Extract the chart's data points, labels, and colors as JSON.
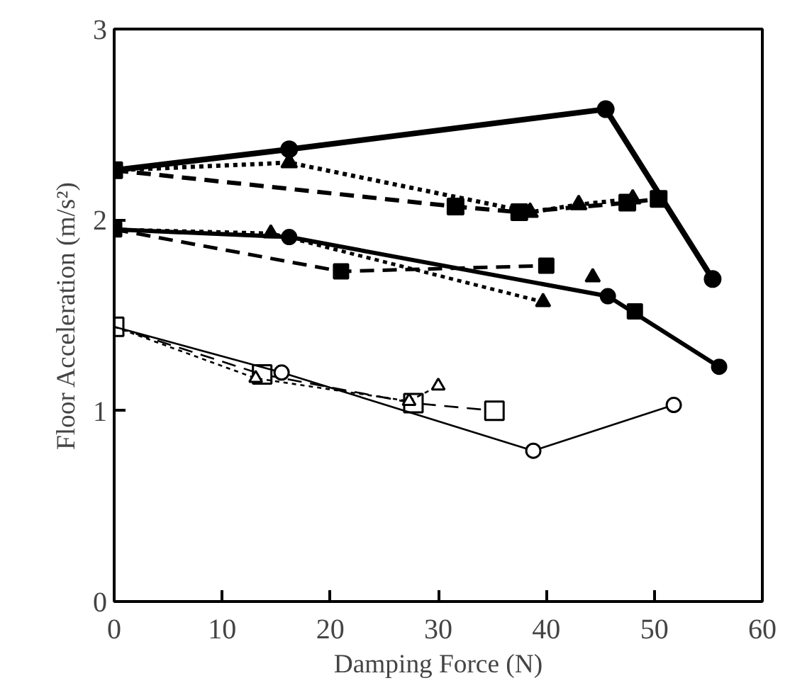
{
  "chart_data": {
    "type": "line",
    "xlabel": "Damping Force (N)",
    "ylabel": "Floor Acceleration (m/s²)",
    "xlim": [
      0,
      60
    ],
    "ylim": [
      0,
      3
    ],
    "xticks": [
      0,
      10,
      20,
      30,
      40,
      50,
      60
    ],
    "yticks": [
      0,
      1,
      2,
      3
    ],
    "grid": false,
    "series": [
      {
        "color": "#000000",
        "marker": "square",
        "line_style": "dashed",
        "x": [
          0,
          31.6,
          37.5,
          47.5,
          50.4
        ],
        "values": [
          2.26,
          2.07,
          2.04,
          2.09,
          2.11
        ]
      },
      {
        "color": "#000000",
        "marker": "circle",
        "line_style": "solid",
        "x": [
          0,
          16.2,
          45.5,
          55.4
        ],
        "values": [
          2.26,
          2.37,
          2.58,
          1.69
        ]
      },
      {
        "color": "#000000",
        "marker": "triangle",
        "line_style": "dotted",
        "x": [
          0,
          16.2,
          38.5,
          43,
          48
        ],
        "values": [
          2.26,
          2.3,
          2.04,
          2.08,
          2.11
        ]
      },
      {
        "color": "#000000",
        "marker": "square",
        "line_style": "dashed",
        "x": [
          0,
          21,
          40,
          44,
          48.2
        ],
        "values": [
          1.95,
          1.73,
          1.76,
          null,
          1.52
        ]
      },
      {
        "color": "#000000",
        "marker": "circle",
        "line_style": "solid",
        "x": [
          0,
          16.2,
          45.7,
          56
        ],
        "values": [
          1.95,
          1.91,
          1.6,
          1.23
        ]
      },
      {
        "color": "#000000",
        "marker": "triangle",
        "line_style": "dotted",
        "x": [
          0,
          14.5,
          39.7,
          42,
          44.3
        ],
        "values": [
          1.95,
          1.93,
          1.57,
          null,
          1.7
        ]
      },
      {
        "color": "#000000",
        "marker": "square",
        "line_style": "dashed",
        "x": [
          0,
          13.7,
          27.7,
          35.2
        ],
        "values": [
          1.44,
          1.19,
          1.04,
          1.0
        ]
      },
      {
        "color": "#000000",
        "marker": "circle",
        "line_style": "solid",
        "x": [
          0,
          15.5,
          38.8,
          51.8
        ],
        "values": [
          1.44,
          1.2,
          0.79,
          1.03
        ]
      },
      {
        "color": "#000000",
        "marker": "triangle",
        "line_style": "dotted",
        "x": [
          0,
          13.1,
          27.3,
          30
        ],
        "values": [
          1.44,
          1.17,
          1.05,
          1.13
        ]
      }
    ]
  }
}
